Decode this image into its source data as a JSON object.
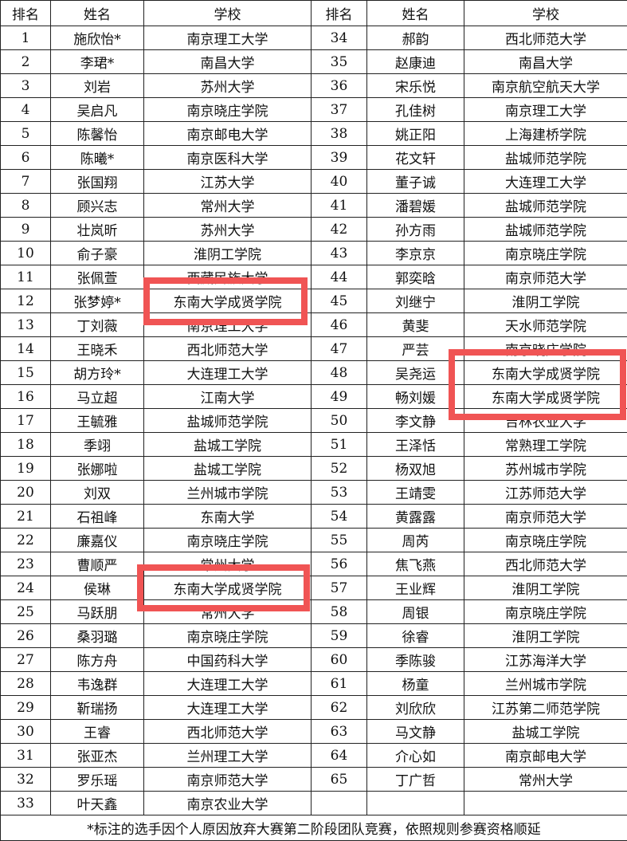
{
  "headers": [
    "排名",
    "姓名",
    "学校",
    "排名",
    "姓名",
    "学校"
  ],
  "left": [
    [
      "1",
      "施欣怡*",
      "南京理工大学"
    ],
    [
      "2",
      "李珺*",
      "南昌大学"
    ],
    [
      "3",
      "刘岩",
      "苏州大学"
    ],
    [
      "4",
      "吴启凡",
      "南京晓庄学院"
    ],
    [
      "5",
      "陈馨怡",
      "南京邮电大学"
    ],
    [
      "6",
      "陈曦*",
      "南京医科大学"
    ],
    [
      "7",
      "张国翔",
      "江苏大学"
    ],
    [
      "8",
      "顾兴志",
      "常州大学"
    ],
    [
      "9",
      "壮岚昕",
      "苏州大学"
    ],
    [
      "10",
      "俞子豪",
      "淮阴工学院"
    ],
    [
      "11",
      "张佩萱",
      "西藏民族大学"
    ],
    [
      "12",
      "张梦婷*",
      "东南大学成贤学院"
    ],
    [
      "13",
      "丁刘薇",
      "南京理工大学"
    ],
    [
      "14",
      "王晓禾",
      "西北师范大学"
    ],
    [
      "15",
      "胡方玲*",
      "大连理工大学"
    ],
    [
      "16",
      "马立超",
      "江南大学"
    ],
    [
      "17",
      "王毓雅",
      "盐城师范学院"
    ],
    [
      "18",
      "季翊",
      "盐城工学院"
    ],
    [
      "19",
      "张娜啦",
      "盐城工学院"
    ],
    [
      "20",
      "刘双",
      "兰州城市学院"
    ],
    [
      "21",
      "石祖峰",
      "东南大学"
    ],
    [
      "22",
      "廉嘉仪",
      "南京晓庄学院"
    ],
    [
      "23",
      "曹顺严",
      "常州大学"
    ],
    [
      "24",
      "侯琳",
      "东南大学成贤学院"
    ],
    [
      "25",
      "马跃朋",
      "常州大学"
    ],
    [
      "26",
      "桑羽璐",
      "南京晓庄学院"
    ],
    [
      "27",
      "陈方舟",
      "中国药科大学"
    ],
    [
      "28",
      "韦逸群",
      "大连理工大学"
    ],
    [
      "29",
      "靳瑞扬",
      "大连理工大学"
    ],
    [
      "30",
      "王睿",
      "西北师范大学"
    ],
    [
      "31",
      "张亚杰",
      "兰州理工大学"
    ],
    [
      "32",
      "罗乐瑶",
      "南京师范大学"
    ],
    [
      "33",
      "叶天鑫",
      "南京农业大学"
    ]
  ],
  "right": [
    [
      "34",
      "郝韵",
      "西北师范大学"
    ],
    [
      "35",
      "赵康迪",
      "南昌大学"
    ],
    [
      "36",
      "宋乐悦",
      "南京航空航天大学"
    ],
    [
      "37",
      "孔佳树",
      "南京理工大学"
    ],
    [
      "38",
      "姚正阳",
      "上海建桥学院"
    ],
    [
      "39",
      "花文轩",
      "盐城师范学院"
    ],
    [
      "40",
      "董子诚",
      "大连理工大学"
    ],
    [
      "41",
      "潘碧媛",
      "盐城师范学院"
    ],
    [
      "42",
      "孙方雨",
      "盐城师范学院"
    ],
    [
      "43",
      "李京京",
      "南京晓庄学院"
    ],
    [
      "44",
      "郭奕晗",
      "南京师范大学"
    ],
    [
      "45",
      "刘继宁",
      "淮阴工学院"
    ],
    [
      "46",
      "黄斐",
      "天水师范学院"
    ],
    [
      "47",
      "严芸",
      "南京晓庄学院"
    ],
    [
      "48",
      "吴尧运",
      "东南大学成贤学院"
    ],
    [
      "49",
      "畅刘媛",
      "东南大学成贤学院"
    ],
    [
      "50",
      "李文静",
      "吉林农业大学"
    ],
    [
      "51",
      "王泽恬",
      "常熟理工学院"
    ],
    [
      "52",
      "杨双旭",
      "苏州城市学院"
    ],
    [
      "53",
      "王靖雯",
      "江苏师范大学"
    ],
    [
      "54",
      "黄露露",
      "南京师范大学"
    ],
    [
      "55",
      "周芮",
      "南京晓庄学院"
    ],
    [
      "56",
      "焦飞燕",
      "西北师范大学"
    ],
    [
      "57",
      "王业辉",
      "淮阴工学院"
    ],
    [
      "58",
      "周银",
      "南京晓庄学院"
    ],
    [
      "59",
      "徐睿",
      "淮阴工学院"
    ],
    [
      "60",
      "季陈骏",
      "江苏海洋大学"
    ],
    [
      "61",
      "杨童",
      "兰州城市学院"
    ],
    [
      "62",
      "刘欣欣",
      "江苏第二师范学院"
    ],
    [
      "63",
      "马文静",
      "盐城工学院"
    ],
    [
      "64",
      "介心如",
      "南京邮电大学"
    ],
    [
      "65",
      "丁广哲",
      "常州大学"
    ],
    [
      "",
      "",
      ""
    ]
  ],
  "footnote": "*标注的选手因个人原因放弃大赛第二阶段团队竞赛，依照规则参赛资格顺延",
  "highlight_color": "#f05454"
}
